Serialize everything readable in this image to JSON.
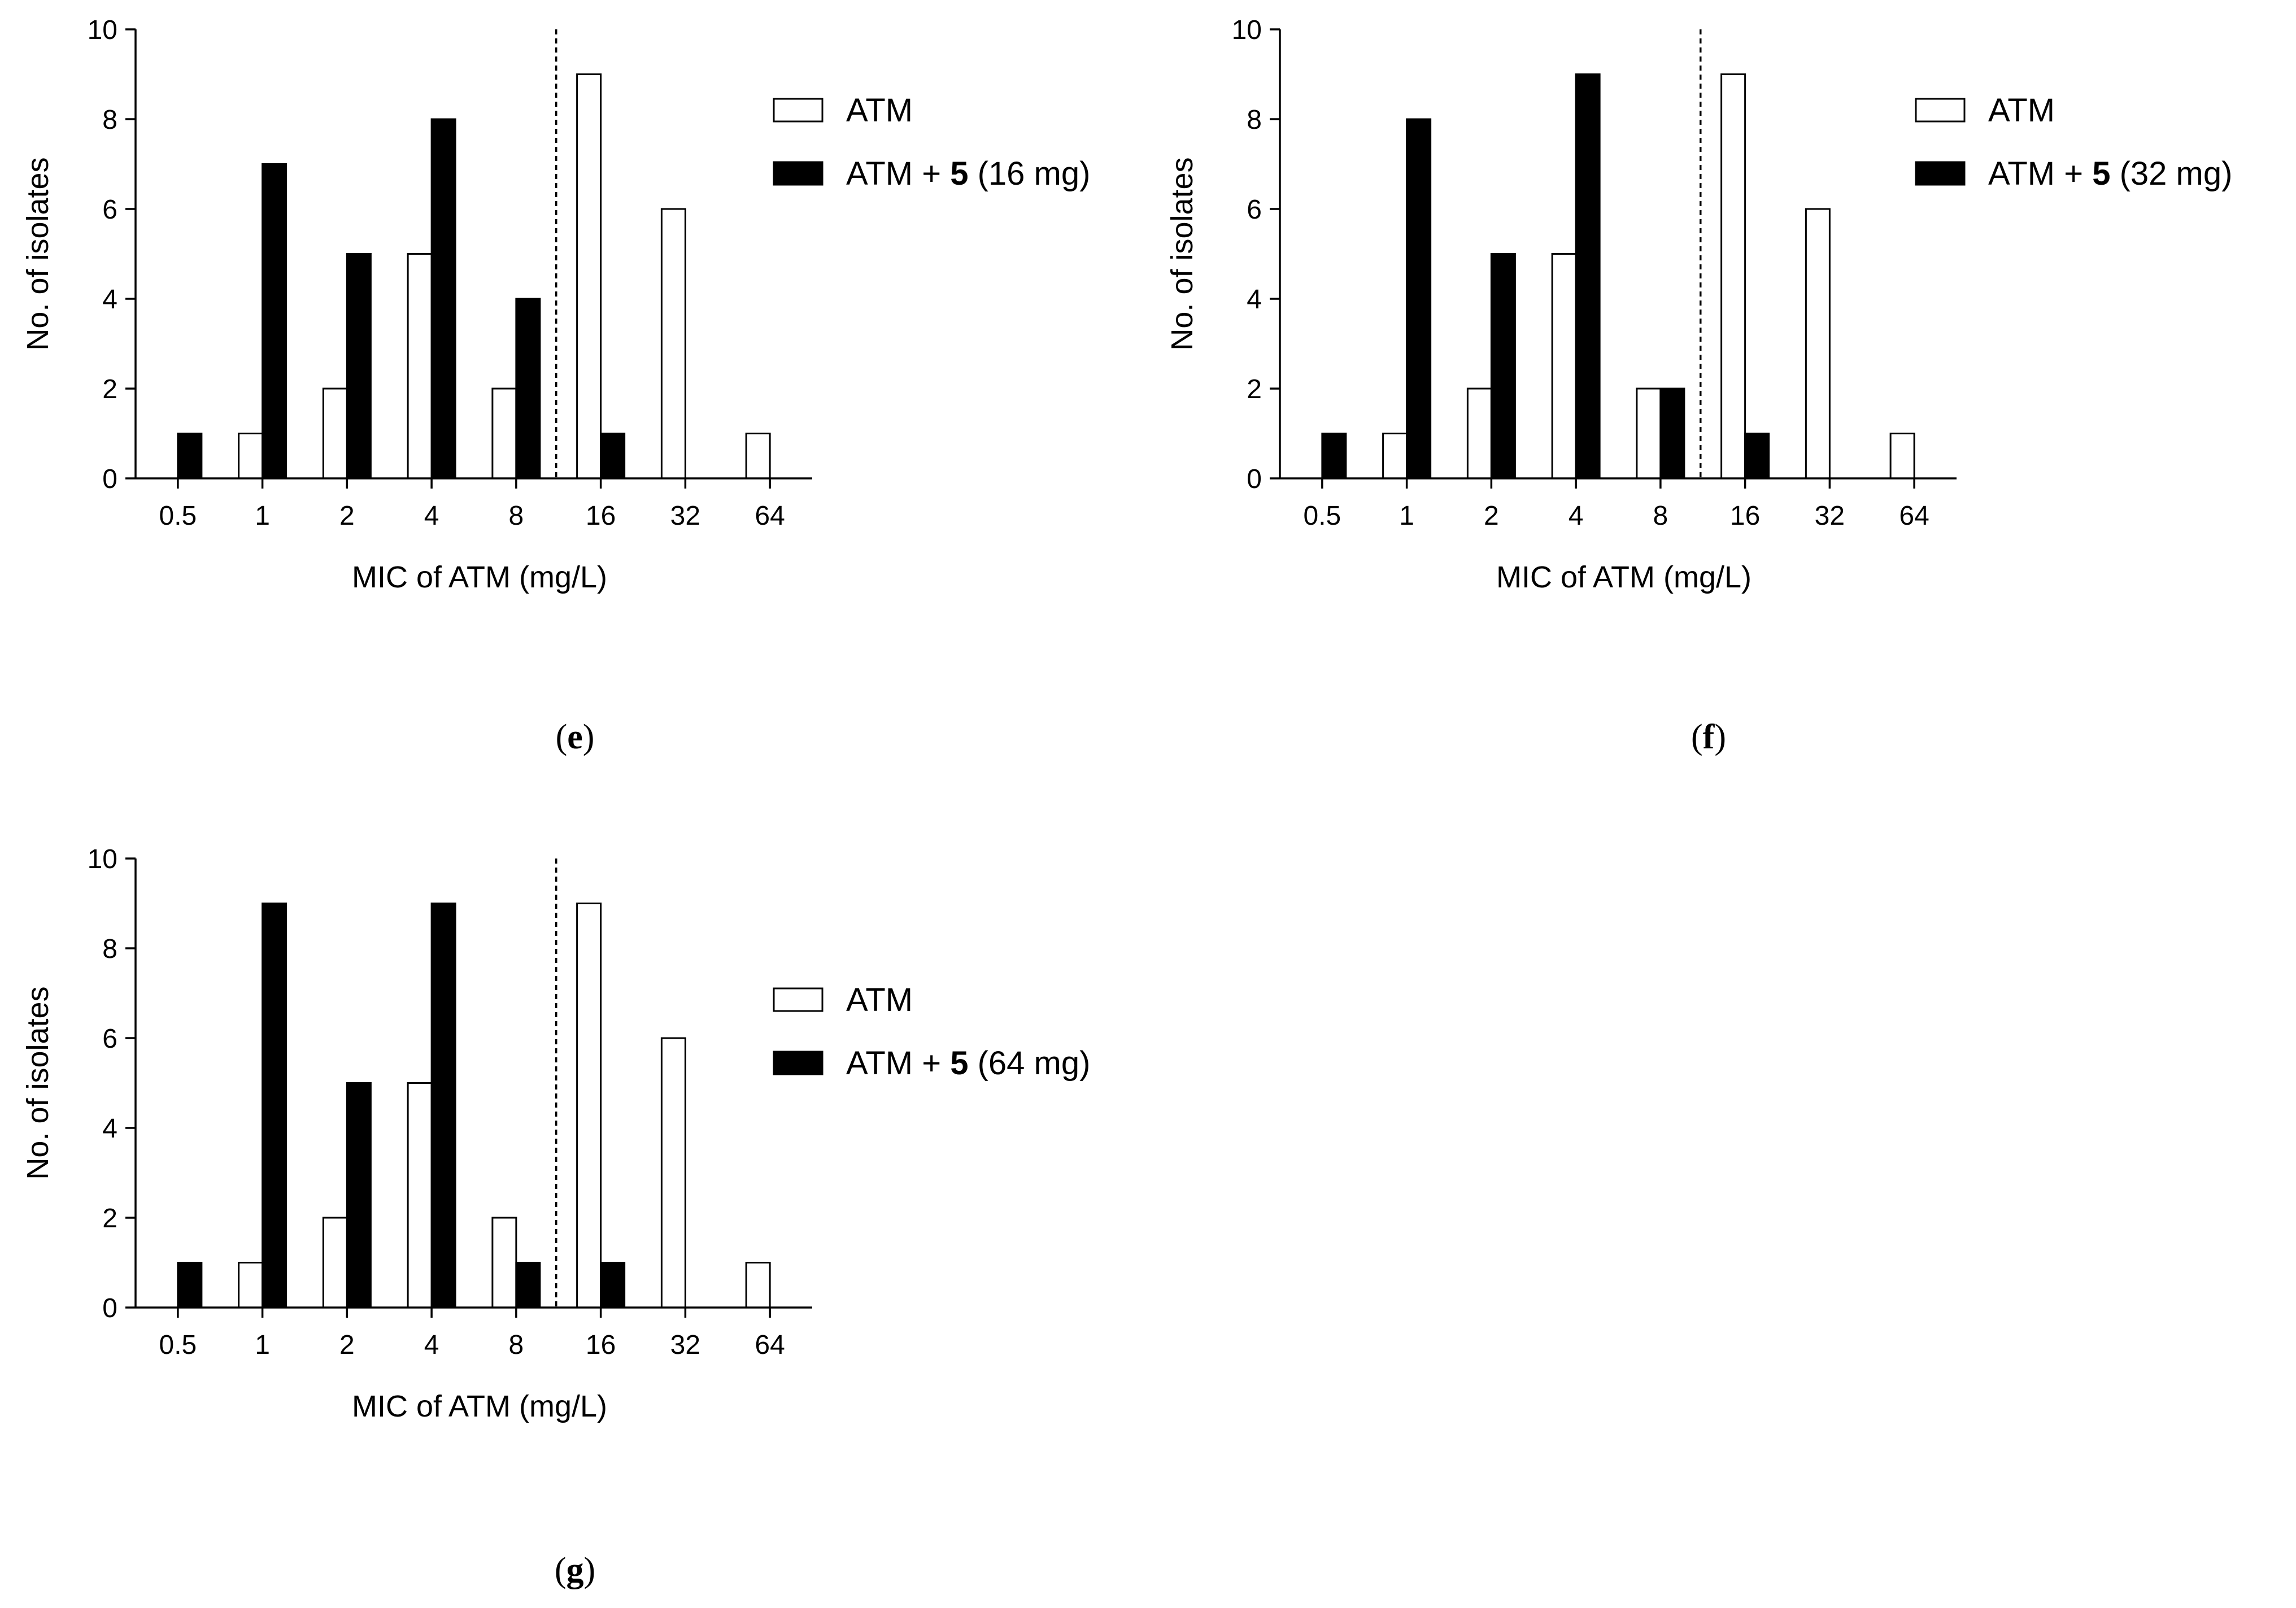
{
  "chart_data": [
    {
      "type": "bar",
      "panel_label": "e",
      "categories": [
        "0.5",
        "1",
        "2",
        "4",
        "8",
        "16",
        "32",
        "64"
      ],
      "series": [
        {
          "name": "ATM",
          "fill": "#ffffff",
          "values": [
            0,
            1,
            2,
            5,
            2,
            9,
            6,
            1
          ]
        },
        {
          "name": "ATM + 5 (16 mg)",
          "fill": "#000000",
          "values": [
            1,
            7,
            5,
            8,
            4,
            1,
            0,
            0
          ]
        }
      ],
      "legend": [
        {
          "pre": "ATM",
          "bold": "",
          "post": ""
        },
        {
          "pre": "ATM + ",
          "bold": "5",
          "post": " (16 mg)"
        }
      ],
      "xlabel": "MIC of ATM (mg/L)",
      "ylabel": "No. of isolates",
      "ylim": [
        0,
        10
      ],
      "yticks": [
        "0",
        "2",
        "4",
        "6",
        "8",
        "10"
      ],
      "breakpoint_after_category": "8"
    },
    {
      "type": "bar",
      "panel_label": "f",
      "categories": [
        "0.5",
        "1",
        "2",
        "4",
        "8",
        "16",
        "32",
        "64"
      ],
      "series": [
        {
          "name": "ATM",
          "fill": "#ffffff",
          "values": [
            0,
            1,
            2,
            5,
            2,
            9,
            6,
            1
          ]
        },
        {
          "name": "ATM + 5 (32 mg)",
          "fill": "#000000",
          "values": [
            1,
            8,
            5,
            9,
            2,
            1,
            0,
            0
          ]
        }
      ],
      "legend": [
        {
          "pre": "ATM",
          "bold": "",
          "post": ""
        },
        {
          "pre": "ATM + ",
          "bold": "5",
          "post": " (32 mg)"
        }
      ],
      "xlabel": "MIC of ATM (mg/L)",
      "ylabel": "No. of isolates",
      "ylim": [
        0,
        10
      ],
      "yticks": [
        "0",
        "2",
        "4",
        "6",
        "8",
        "10"
      ],
      "breakpoint_after_category": "8"
    },
    {
      "type": "bar",
      "panel_label": "g",
      "categories": [
        "0.5",
        "1",
        "2",
        "4",
        "8",
        "16",
        "32",
        "64"
      ],
      "series": [
        {
          "name": "ATM",
          "fill": "#ffffff",
          "values": [
            0,
            1,
            2,
            5,
            2,
            9,
            6,
            1
          ]
        },
        {
          "name": "ATM + 5 (64 mg)",
          "fill": "#000000",
          "values": [
            1,
            9,
            5,
            9,
            1,
            1,
            0,
            0
          ]
        }
      ],
      "legend": [
        {
          "pre": "ATM",
          "bold": "",
          "post": ""
        },
        {
          "pre": "ATM + ",
          "bold": "5",
          "post": " (64 mg)"
        }
      ],
      "xlabel": "MIC of ATM (mg/L)",
      "ylabel": "No. of isolates",
      "ylim": [
        0,
        10
      ],
      "yticks": [
        "0",
        "2",
        "4",
        "6",
        "8",
        "10"
      ],
      "breakpoint_after_category": "8"
    }
  ]
}
